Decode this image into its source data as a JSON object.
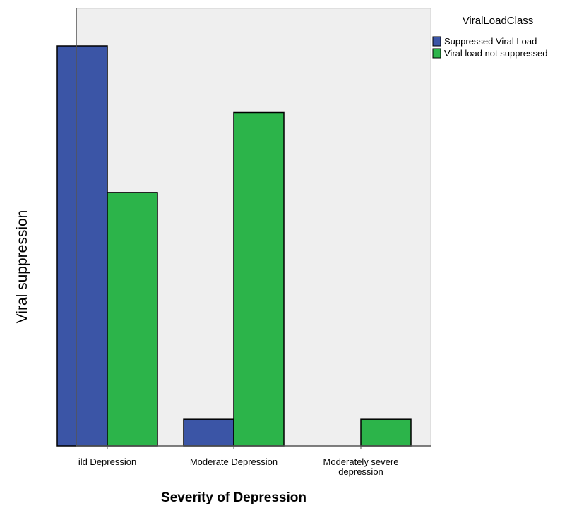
{
  "chart_data": {
    "type": "bar",
    "title": "",
    "xlabel": "Severity of Depression",
    "ylabel": "Viral suppression",
    "categories": [
      "ild Depression",
      "Moderate Depression",
      "Moderately severe\ndepression"
    ],
    "series": [
      {
        "name": "Suppressed Viral Load",
        "values": [
          30,
          2,
          0
        ]
      },
      {
        "name": "Viral load not suppressed",
        "values": [
          19,
          25,
          2
        ]
      }
    ],
    "ylim": [
      0,
      30
    ],
    "grid": false,
    "legend": {
      "title": "ViralLoadClass",
      "position": "top-right"
    },
    "colors": {
      "series": [
        "#3b55a6",
        "#2cb44a"
      ],
      "plot_background": "#efefef",
      "axis": "#555555",
      "bar_stroke": "#000000"
    }
  }
}
